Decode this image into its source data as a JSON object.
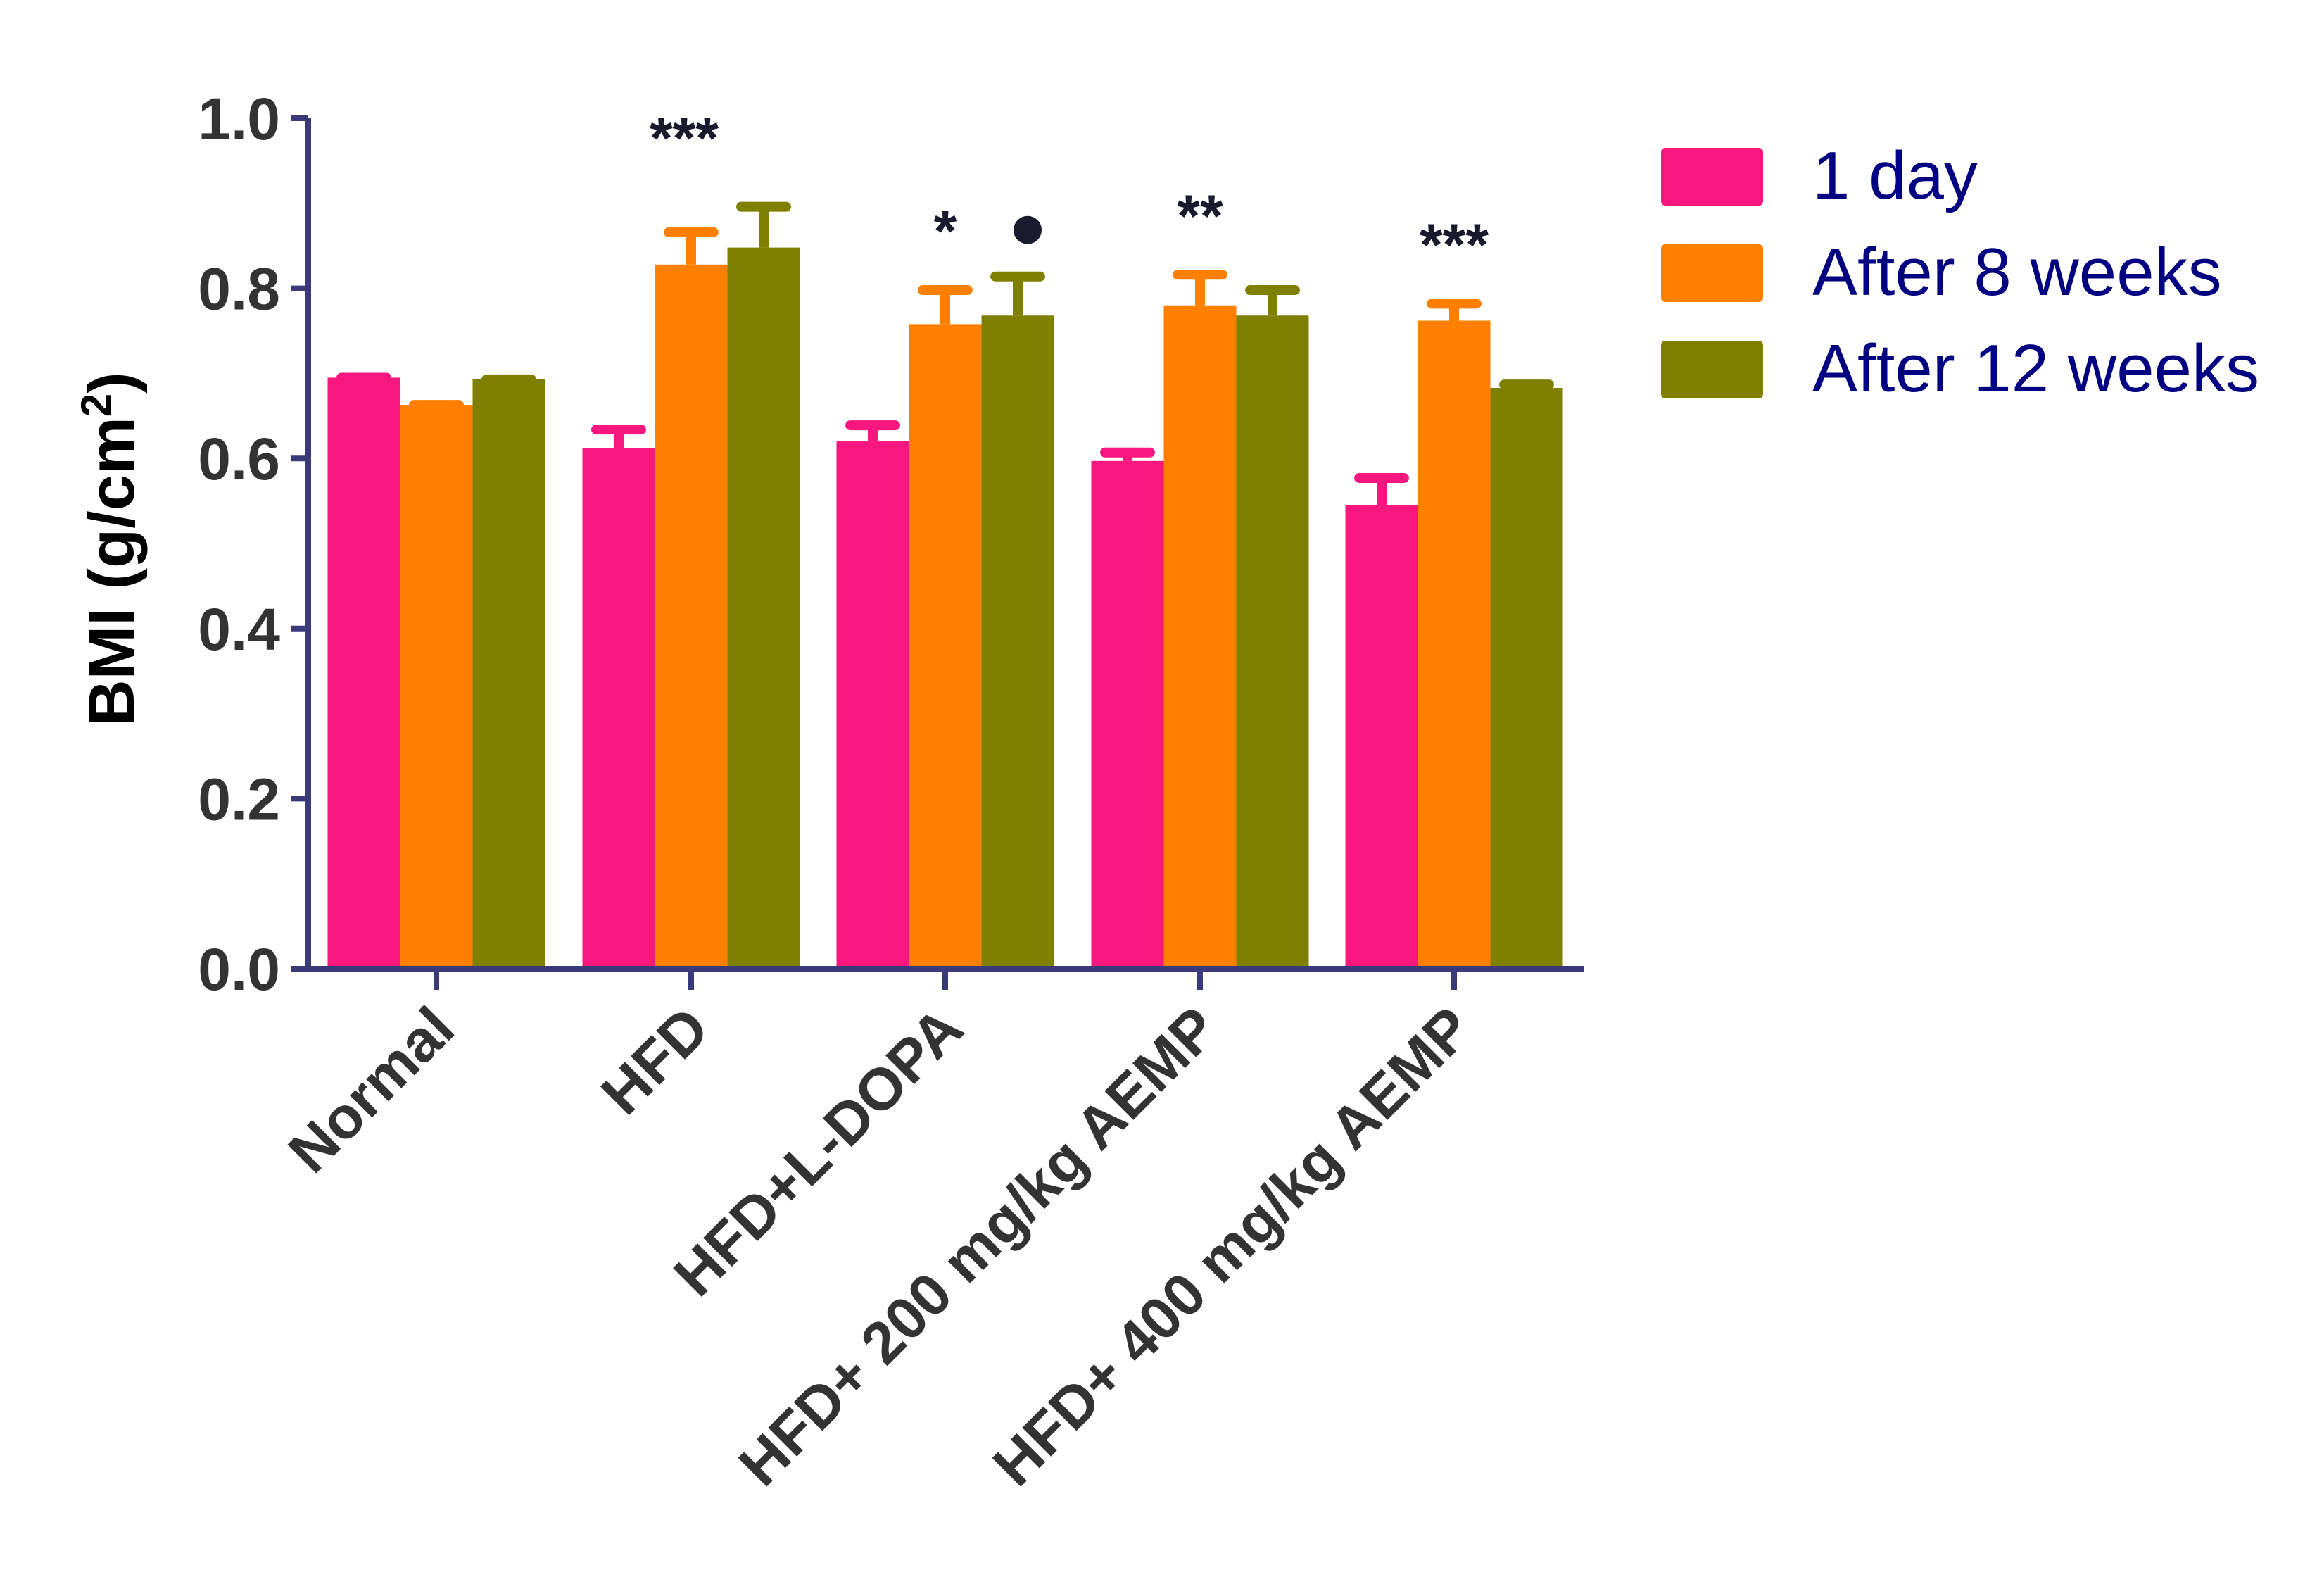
{
  "chart_data": {
    "type": "bar",
    "title": "",
    "xlabel": "",
    "ylabel": "BMI (g/cm",
    "ylabel_superscript": "2",
    "ylabel_suffix": ")",
    "ylim": [
      0,
      1.0
    ],
    "yticks": [
      "0.0",
      "0.2",
      "0.4",
      "0.6",
      "0.8",
      "1.0"
    ],
    "categories": [
      "Normal",
      "HFD",
      "HFD+L-DOPA",
      "HFD+ 200 mg/kg AEMP",
      "HFD+ 400 mg/kg AEMP"
    ],
    "series": [
      {
        "name": "1 day",
        "color": "#f7177f",
        "values": [
          0.695,
          0.612,
          0.62,
          0.597,
          0.545
        ],
        "errors": [
          0.0,
          0.022,
          0.019,
          0.01,
          0.032
        ]
      },
      {
        "name": "After 8 weeks",
        "color": "#ff8000",
        "values": [
          0.663,
          0.828,
          0.758,
          0.78,
          0.762
        ],
        "errors": [
          0.0,
          0.038,
          0.04,
          0.036,
          0.02
        ]
      },
      {
        "name": "After 12 weeks",
        "color": "#808000",
        "values": [
          0.693,
          0.848,
          0.768,
          0.768,
          0.683
        ],
        "errors": [
          0.0,
          0.048,
          0.046,
          0.03,
          0.004
        ]
      }
    ],
    "annotations": [
      {
        "category": "HFD",
        "text": "***",
        "series": 1
      },
      {
        "category": "HFD+L-DOPA",
        "text": "*",
        "series": 1
      },
      {
        "category": "HFD+L-DOPA",
        "text": "●",
        "series": 2
      },
      {
        "category": "HFD+ 200 mg/kg AEMP",
        "text": "**",
        "series": 1
      },
      {
        "category": "HFD+ 400 mg/kg AEMP",
        "text": "***",
        "series": 1
      }
    ],
    "legend_position": "top-right",
    "grid": false,
    "colors": {
      "axis": "#3a3a7a",
      "text": "#333333",
      "legend_text": "#000080"
    }
  }
}
